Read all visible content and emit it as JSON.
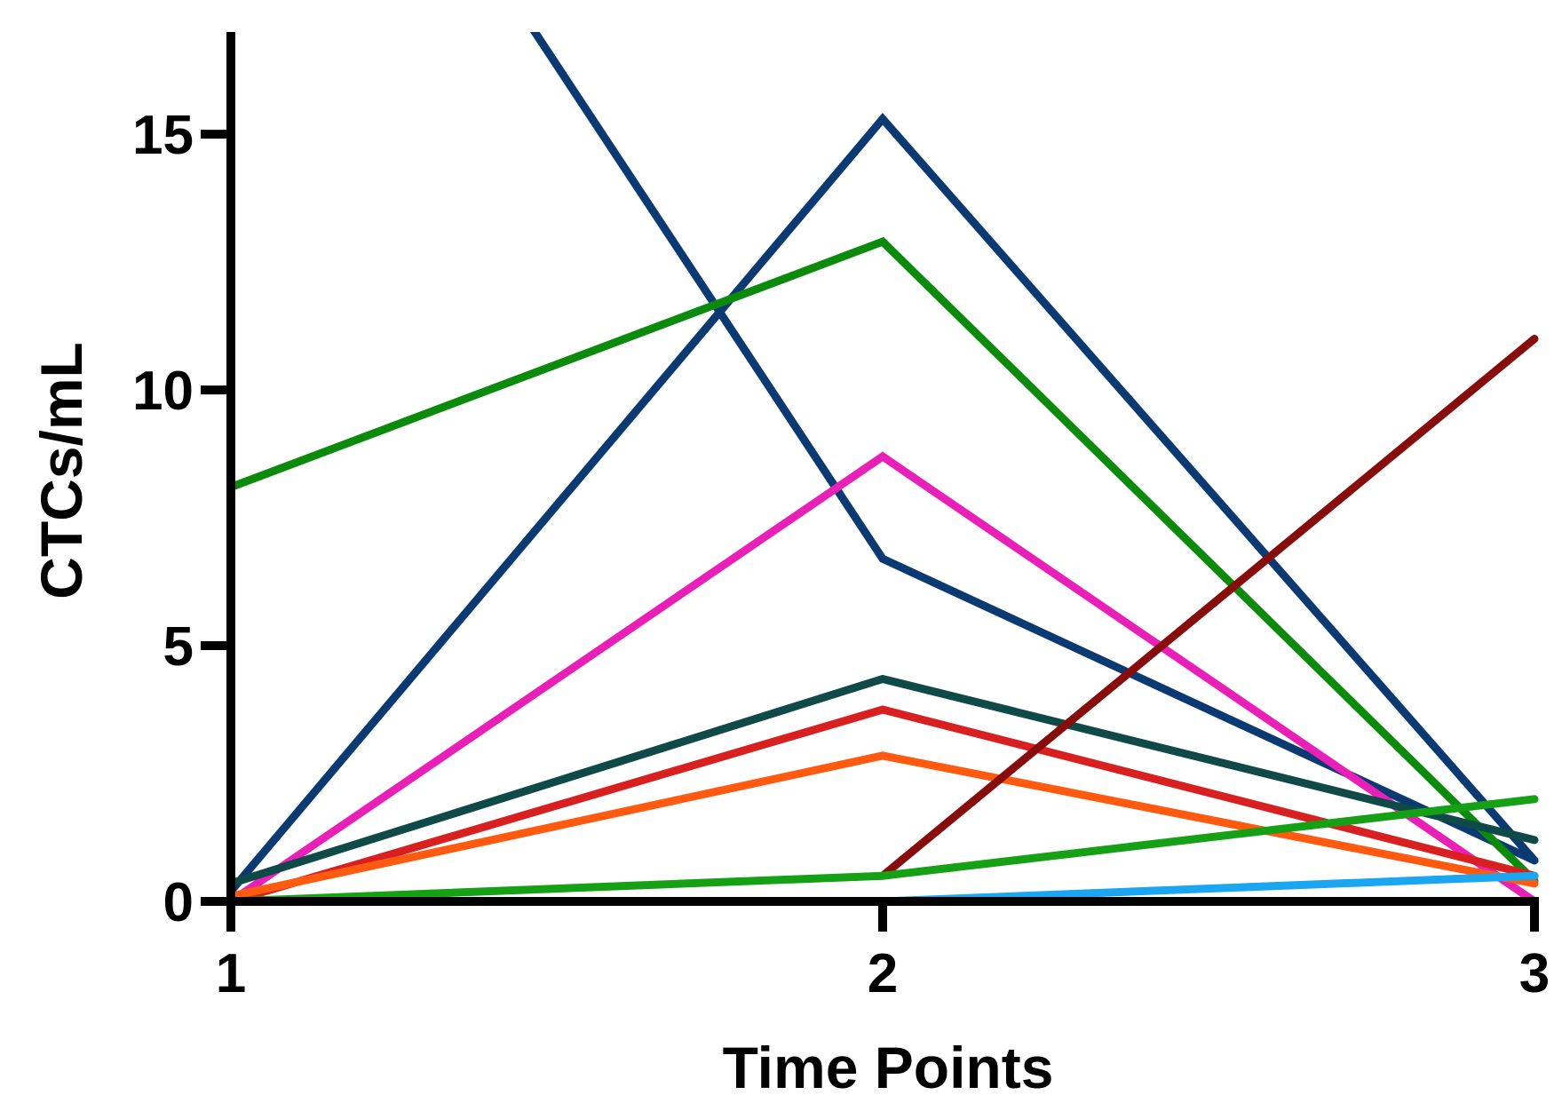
{
  "chart_data": {
    "type": "line",
    "title": "",
    "xlabel": "Time Points",
    "ylabel": "CTCs/mL",
    "x": [
      1,
      2,
      3
    ],
    "xlim": [
      1,
      3
    ],
    "ylim": [
      0,
      17
    ],
    "xticks": [
      "1",
      "2",
      "3"
    ],
    "yticks": [
      "0",
      "5",
      "10",
      "15"
    ],
    "yticks_values": [
      0,
      5,
      10,
      15
    ],
    "grid": false,
    "legend": "none",
    "series": [
      {
        "color": "#0b3a72",
        "values": [
          26.0,
          6.7,
          0.8
        ]
      },
      {
        "color": "#0b3a72",
        "values": [
          0.2,
          15.3,
          0.8
        ]
      },
      {
        "color": "#0b8a0b",
        "values": [
          8.1,
          12.9,
          0.4
        ]
      },
      {
        "color": "#e820b8",
        "values": [
          0.0,
          8.7,
          0.0
        ]
      },
      {
        "color": "#0f4a48",
        "values": [
          0.35,
          4.35,
          1.2
        ]
      },
      {
        "color": "#d92020",
        "values": [
          0.0,
          3.75,
          0.5
        ]
      },
      {
        "color": "#ff5a10",
        "values": [
          0.1,
          2.85,
          0.35
        ]
      },
      {
        "color": "#870c0c",
        "values": [
          null,
          0.5,
          11.0
        ]
      },
      {
        "color": "#15a015",
        "values": [
          0.0,
          0.5,
          2.0
        ]
      },
      {
        "color": "#1aa6f0",
        "values": [
          0.0,
          0.0,
          0.5
        ]
      },
      {
        "color": "#0f4a48",
        "values": [
          0.0,
          0.0,
          0.0
        ]
      },
      {
        "color": "#5a0f60",
        "values": [
          0.0,
          0.0,
          null
        ]
      }
    ]
  }
}
